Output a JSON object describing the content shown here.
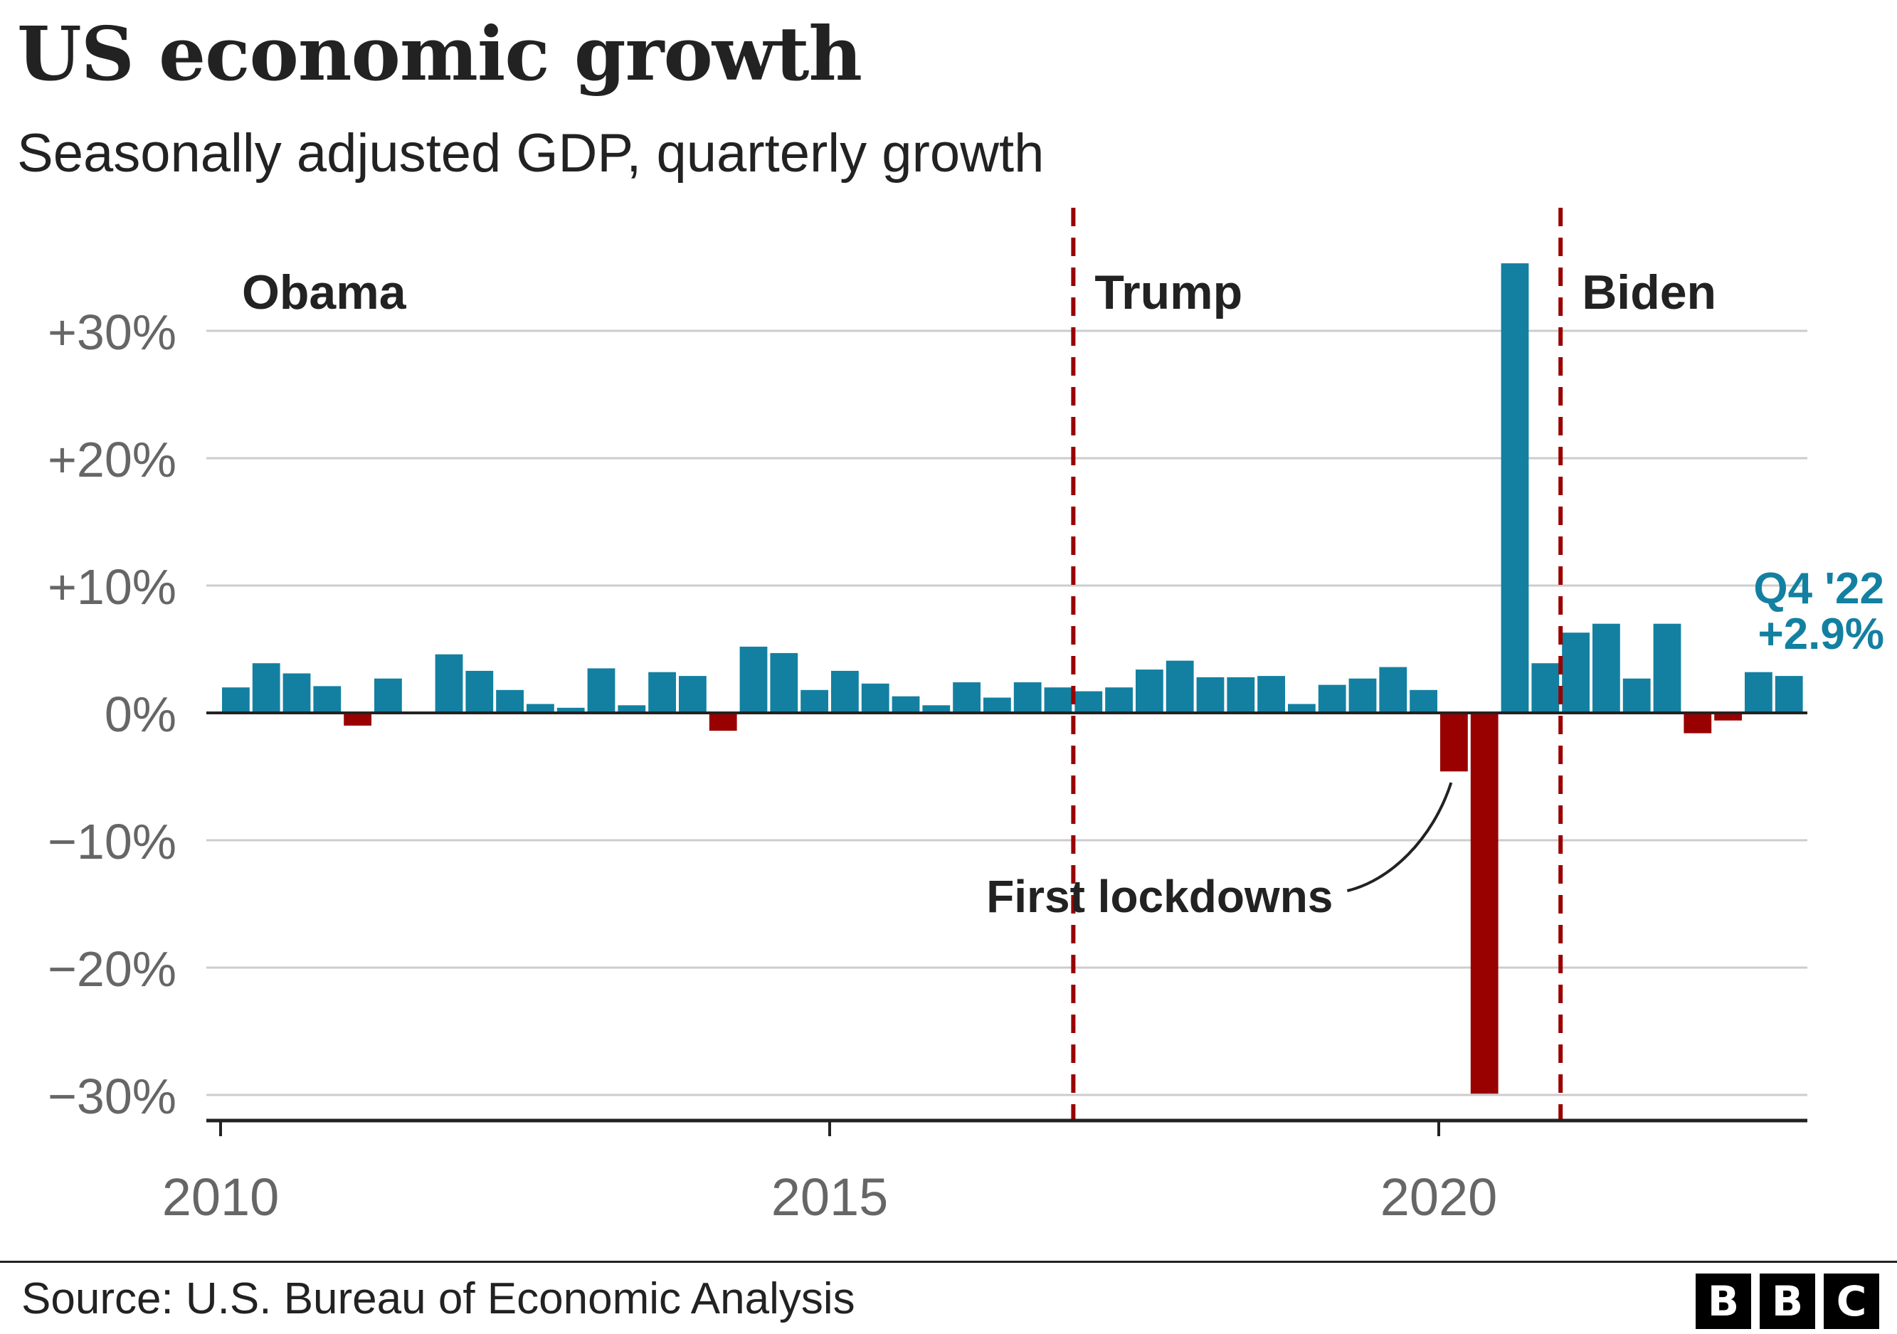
{
  "title": "US economic growth",
  "subtitle": "Seasonally adjusted GDP, quarterly growth",
  "source": "Source: U.S. Bureau of Economic Analysis",
  "logo": [
    "B",
    "B",
    "C"
  ],
  "colors": {
    "positive": "#1380a1",
    "negative": "#990000",
    "divider": "#990000",
    "text": "#222222",
    "axis_text": "#666666",
    "grid": "#cccccc"
  },
  "chart_data": {
    "type": "bar",
    "ylim": [
      -31,
      37
    ],
    "yticks": [
      30,
      20,
      10,
      0,
      -10,
      -20,
      -30
    ],
    "ytick_labels": [
      "+30%",
      "+20%",
      "+10%",
      "0%",
      "−10%",
      "−20%",
      "−30%"
    ],
    "xticks": [
      2010,
      2015,
      2020
    ],
    "xtick_labels": [
      "2010",
      "2015",
      "2020"
    ],
    "grid": true,
    "first_quarter": "2010 Q1",
    "values": [
      2.0,
      3.9,
      3.1,
      2.1,
      -1.0,
      2.7,
      0,
      4.6,
      3.3,
      1.8,
      0.7,
      0.4,
      3.5,
      0.6,
      3.2,
      2.9,
      -1.4,
      5.2,
      4.7,
      1.8,
      3.3,
      2.3,
      1.3,
      0.6,
      2.4,
      1.2,
      2.4,
      2.0,
      1.7,
      2.0,
      3.4,
      4.1,
      2.8,
      2.8,
      2.9,
      0.7,
      2.2,
      2.7,
      3.6,
      1.8,
      -4.6,
      -29.9,
      35.3,
      3.9,
      6.3,
      7.0,
      2.7,
      7.0,
      -1.6,
      -0.6,
      3.2,
      2.9
    ],
    "eras": [
      {
        "label": "Obama",
        "start": 2010.0
      },
      {
        "label": "Trump",
        "start": 2017.0
      },
      {
        "label": "Biden",
        "start": 2021.0
      }
    ],
    "annotations": [
      {
        "text": "First lockdowns",
        "x": 2020.0
      },
      {
        "text_lines": [
          "Q4 '22",
          "+2.9%"
        ],
        "x": 2022.75
      }
    ]
  }
}
